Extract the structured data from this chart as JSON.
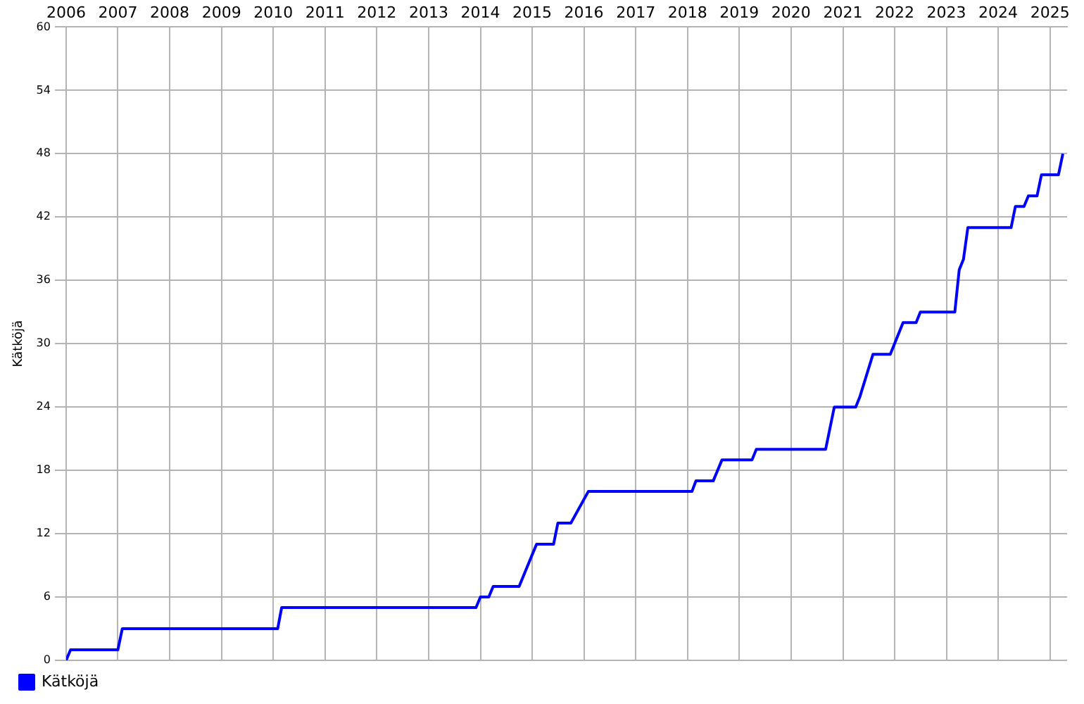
{
  "chart_data": {
    "type": "line",
    "ylabel": "Kätköjä",
    "x": [
      "2006-01-01",
      "2006-02",
      "2007-01",
      "2007-02",
      "2010-02",
      "2010-03",
      "2013-12",
      "2014-01",
      "2014-03",
      "2014-04",
      "2014-10",
      "2015-01",
      "2015-02",
      "2015-06",
      "2015-07",
      "2015-10",
      "2016-02",
      "2018-02",
      "2018-03",
      "2018-07",
      "2018-09",
      "2019-04",
      "2019-05",
      "2020-09",
      "2020-11",
      "2021-04",
      "2021-05",
      "2021-08",
      "2021-12",
      "2022-03",
      "2022-06",
      "2022-07",
      "2023-03",
      "2023-04",
      "2023-05",
      "2023-06",
      "2024-04",
      "2024-05",
      "2024-07",
      "2024-08",
      "2024-10",
      "2024-11",
      "2025-03",
      "2025-04"
    ],
    "series": [
      {
        "name": "Kätköjä",
        "color": "#0000ff",
        "values": [
          0,
          1,
          1,
          3,
          3,
          5,
          5,
          6,
          6,
          7,
          7,
          10,
          11,
          11,
          13,
          13,
          16,
          16,
          17,
          17,
          19,
          19,
          20,
          20,
          24,
          24,
          25,
          29,
          29,
          32,
          32,
          33,
          33,
          37,
          38,
          41,
          41,
          43,
          43,
          44,
          44,
          46,
          46,
          48
        ]
      }
    ],
    "xlim": [
      "2006-01-01",
      "2025-05"
    ],
    "xticks": [
      "2006",
      "2007",
      "2008",
      "2009",
      "2010",
      "2011",
      "2012",
      "2013",
      "2014",
      "2015",
      "2016",
      "2017",
      "2018",
      "2019",
      "2020",
      "2021",
      "2022",
      "2023",
      "2024",
      "2025"
    ],
    "ylim": [
      0,
      60
    ],
    "yticks": [
      0,
      6,
      12,
      18,
      24,
      30,
      36,
      42,
      48,
      54,
      60
    ],
    "grid": true,
    "legend": "bottom left",
    "marker": "none",
    "line_style": "solid"
  }
}
